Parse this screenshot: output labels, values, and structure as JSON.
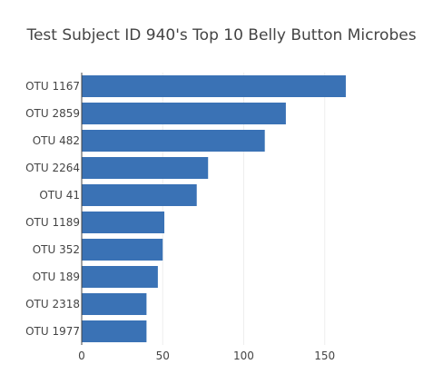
{
  "chart_data": {
    "type": "bar",
    "orientation": "horizontal",
    "title": "Test Subject ID 940's Top 10 Belly Button Microbes",
    "xlabel": "",
    "ylabel": "",
    "categories": [
      "OTU 1167",
      "OTU 2859",
      "OTU 482",
      "OTU 2264",
      "OTU 41",
      "OTU 1189",
      "OTU 352",
      "OTU 189",
      "OTU 2318",
      "OTU 1977"
    ],
    "values": [
      163,
      126,
      113,
      78,
      71,
      51,
      50,
      47,
      40,
      40
    ],
    "xlim": [
      0,
      172
    ],
    "xticks": [
      0,
      50,
      100,
      150
    ],
    "grid": true,
    "bar_color": "#3a72b5"
  }
}
